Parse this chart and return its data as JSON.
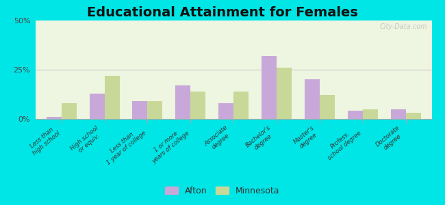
{
  "title": "Educational Attainment for Females",
  "categories": [
    "Less than\nhigh school",
    "High school\nor equiv.",
    "Less than\n1 year of college",
    "1 or more\nyears of college",
    "Associate\ndegree",
    "Bachelor's\ndegree",
    "Master's\ndegree",
    "Profess.\nschool degree",
    "Doctorate\ndegree"
  ],
  "afton_values": [
    1.0,
    13.0,
    9.0,
    17.0,
    8.0,
    32.0,
    20.0,
    4.0,
    5.0
  ],
  "minnesota_values": [
    8.0,
    22.0,
    9.0,
    14.0,
    14.0,
    26.0,
    12.0,
    5.0,
    3.0
  ],
  "afton_color": "#c8a8d8",
  "minnesota_color": "#c8d898",
  "background_color": "#00e5e5",
  "plot_bg_color": "#eef5e0",
  "title_fontsize": 14,
  "ylim": [
    0,
    50
  ],
  "yticks": [
    0,
    25,
    50
  ],
  "ytick_labels": [
    "0%",
    "25%",
    "50%"
  ],
  "bar_width": 0.35,
  "legend_labels": [
    "Afton",
    "Minnesota"
  ],
  "watermark": "City-Data.com"
}
